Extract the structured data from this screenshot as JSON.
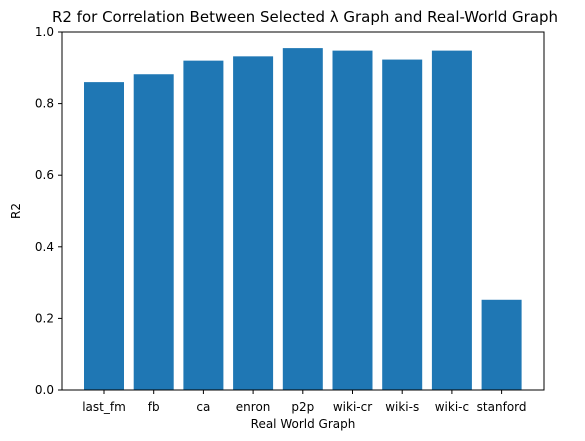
{
  "chart_data": {
    "type": "bar",
    "title": "R2 for Correlation Between Selected λ Graph and Real-World Graph",
    "xlabel": "Real World Graph",
    "ylabel": "R2",
    "categories": [
      "last_fm",
      "fb",
      "ca",
      "enron",
      "p2p",
      "wiki-cr",
      "wiki-s",
      "wiki-c",
      "stanford"
    ],
    "values": [
      0.86,
      0.882,
      0.92,
      0.932,
      0.955,
      0.948,
      0.923,
      0.948,
      0.252
    ],
    "ylim": [
      0,
      1.0
    ],
    "yticks": [
      "0.0",
      "0.2",
      "0.4",
      "0.6",
      "0.8",
      "1.0"
    ],
    "grid": false,
    "bar_color": "#1f77b4"
  }
}
